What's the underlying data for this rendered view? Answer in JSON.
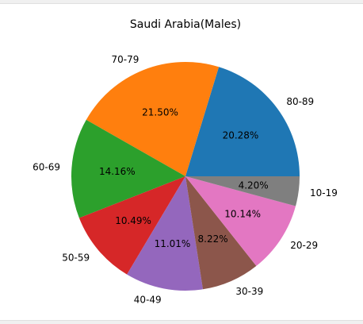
{
  "chart_data": {
    "type": "pie",
    "title": "Saudi Arabia(Males)",
    "slices": [
      {
        "label": "80-89",
        "value": 20.28,
        "pct_label": "20.28%",
        "color": "#1f77b4"
      },
      {
        "label": "70-79",
        "value": 21.5,
        "pct_label": "21.50%",
        "color": "#ff7f0e"
      },
      {
        "label": "60-69",
        "value": 14.16,
        "pct_label": "14.16%",
        "color": "#2ca02c"
      },
      {
        "label": "50-59",
        "value": 10.49,
        "pct_label": "10.49%",
        "color": "#d62728"
      },
      {
        "label": "40-49",
        "value": 11.01,
        "pct_label": "11.01%",
        "color": "#9467bd"
      },
      {
        "label": "30-39",
        "value": 8.22,
        "pct_label": "8.22%",
        "color": "#8c564b"
      },
      {
        "label": "20-29",
        "value": 10.14,
        "pct_label": "10.14%",
        "color": "#e377c2"
      },
      {
        "label": "10-19",
        "value": 4.2,
        "pct_label": "4.20%",
        "color": "#7f7f7f"
      }
    ],
    "start_angle_deg": 0,
    "direction": "counterclockwise"
  }
}
